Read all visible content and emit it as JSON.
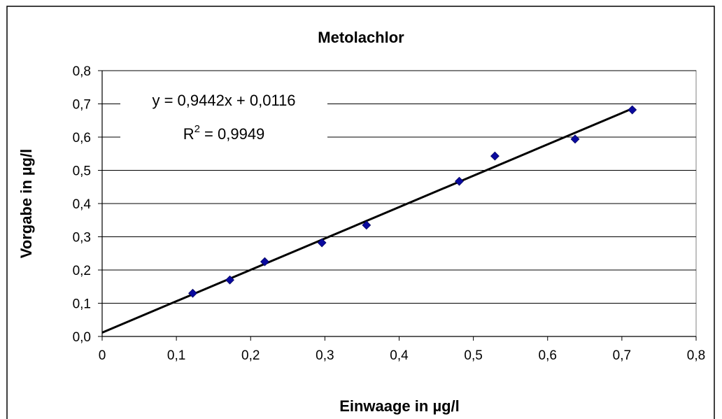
{
  "chart_data": {
    "type": "scatter",
    "title": "Metolachlor",
    "xlabel": "Einwaage in µg/l",
    "ylabel": "Vorgabe in µg/l",
    "xlim": [
      0,
      0.8
    ],
    "ylim": [
      0,
      0.8
    ],
    "xticks": [
      "0",
      "0,1",
      "0,2",
      "0,3",
      "0,4",
      "0,5",
      "0,6",
      "0,7",
      "0,8"
    ],
    "yticks": [
      "0,0",
      "0,1",
      "0,2",
      "0,3",
      "0,4",
      "0,5",
      "0,6",
      "0,7",
      "0,8"
    ],
    "grid": "horizontal",
    "legend": "none",
    "marker": "diamond",
    "marker_color": "#0A0A9E",
    "line_color": "#000000",
    "series": [
      {
        "x": [
          0.122,
          0.172,
          0.219,
          0.296,
          0.356,
          0.481,
          0.529,
          0.637,
          0.714
        ],
        "y": [
          0.13,
          0.17,
          0.225,
          0.282,
          0.335,
          0.467,
          0.543,
          0.594,
          0.682
        ]
      }
    ],
    "trendline": {
      "slope": 0.9442,
      "intercept": 0.0116,
      "x_range": [
        0,
        0.714
      ]
    },
    "annotation": {
      "equation": "y = 0,9442x + 0,0116",
      "r2_prefix": "R",
      "r2_exp": "2",
      "r2_value": " = 0,9949"
    }
  }
}
